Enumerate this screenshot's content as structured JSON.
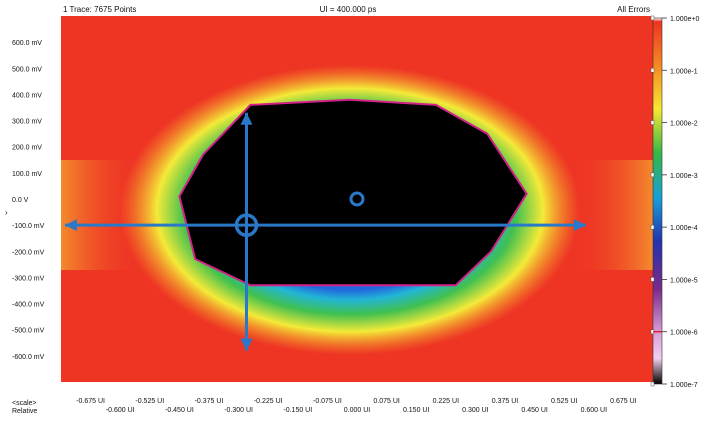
{
  "header": {
    "trace_info": "1 Trace: 7675 Points",
    "ui_label": "UI = 400.000 ps",
    "error_mode": "All Errors"
  },
  "chart_data": {
    "type": "heatmap",
    "subtype": "bathtub-contour eye diagram (BER map)",
    "y_ticks": [
      "600.0 mV",
      "500.0 mV",
      "400.0 mV",
      "300.0 mV",
      "200.0 mV",
      "100.0 mV",
      "0.0 V",
      "-100.0 mV",
      "-200.0 mV",
      "-300.0 mV",
      "-400.0 mV",
      "-500.0 mV",
      "-600.0 mV"
    ],
    "y_tick_values": [
      600,
      500,
      400,
      300,
      200,
      100,
      0,
      -100,
      -200,
      -300,
      -400,
      -500,
      -600
    ],
    "x_ticks_upper": [
      "-0.675 UI",
      "-0.525 UI",
      "-0.375 UI",
      "-0.225 UI",
      "-0.075 UI",
      "0.075 UI",
      "0.225 UI",
      "0.375 UI",
      "0.525 UI",
      "0.675 UI"
    ],
    "x_ticks_lower": [
      "-0.600 UI",
      "-0.450 UI",
      "-0.300 UI",
      "-0.150 UI",
      "0.000 UI",
      "0.150 UI",
      "0.300 UI",
      "0.450 UI",
      "0.600 UI"
    ],
    "x_tick_values_upper": [
      -0.675,
      -0.525,
      -0.375,
      -0.225,
      -0.075,
      0.075,
      0.225,
      0.375,
      0.525,
      0.675
    ],
    "x_tick_values_lower": [
      -0.6,
      -0.45,
      -0.3,
      -0.15,
      0,
      0.15,
      0.3,
      0.45,
      0.6
    ],
    "x_scale_label": "<scale>",
    "x_scale_mode": "Relative",
    "xlim": [
      -0.75,
      0.75
    ],
    "ylim": [
      -700,
      700
    ],
    "colorbar": {
      "ticks": [
        "1.000e+0",
        "1.000e-1",
        "1.000e-2",
        "1.000e-3",
        "1.000e-4",
        "1.000e-5",
        "1.000e-6",
        "1.000e-7"
      ],
      "log_values": [
        0,
        -1,
        -2,
        -3,
        -4,
        -5,
        -6,
        -7
      ],
      "colors": [
        "#ffffff",
        "#ee3322",
        "#f5a020",
        "#f5e832",
        "#35b845",
        "#18a0d8",
        "#2233b0",
        "#7a2a8a",
        "#000000"
      ],
      "marker_value_log": -6
    },
    "eye_opening_polygon": {
      "x": [
        -0.27,
        -0.02,
        0.2,
        0.33,
        0.43,
        0.34,
        0.25,
        -0.27,
        -0.41,
        -0.45,
        -0.39
      ],
      "y": [
        360,
        380,
        360,
        250,
        20,
        -200,
        -330,
        -330,
        -230,
        10,
        170
      ]
    },
    "annotations": {
      "center_marker": {
        "x": 0.0,
        "y": 0
      },
      "crosshair": {
        "x": -0.28,
        "y": -100
      },
      "horizontal_arrow": {
        "x_from": -0.74,
        "x_to": 0.58,
        "y": -100
      },
      "vertical_arrow": {
        "x": -0.28,
        "y_from": 330,
        "y_to": -580
      }
    },
    "grid": false,
    "legend": "colorbar right"
  }
}
